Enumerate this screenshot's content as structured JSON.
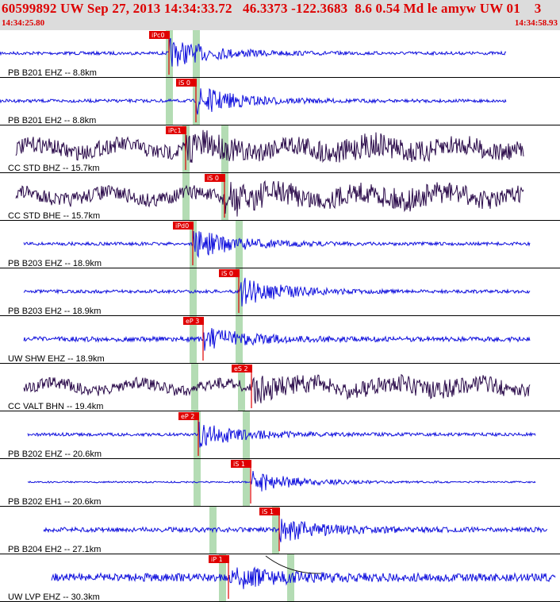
{
  "header": {
    "title": "60599892 UW Sep 27, 2013 14:34:33.72   46.3373 -122.3683  8.6 0.54 Md le amyw UW 01    3",
    "start_time": "14:34:25.80",
    "end_time": "14:34:58.93"
  },
  "colors": {
    "short_period": "#1010dd",
    "broadband": "#2a0a4a",
    "pick": "#e00000",
    "window": "#b4dcb4",
    "label": "#000000"
  },
  "traces": [
    {
      "label": "PB B201 EHZ -- 8.8km",
      "pick": "iPc0",
      "kind": "sp",
      "amp": 2,
      "env": 18,
      "start": 0,
      "end": 638,
      "wins": [
        213,
        247
      ]
    },
    {
      "label": "PB B201 EH2 -- 8.8km",
      "pick": "iS 0",
      "kind": "sp",
      "amp": 2,
      "env": 18,
      "start": 0,
      "end": 638,
      "wins": [
        213,
        247
      ]
    },
    {
      "label": "CC STD BHZ -- 15.7km",
      "pick": "iPc1",
      "kind": "bb",
      "amp": 10,
      "env": 12,
      "start": 20,
      "end": 660,
      "wins": [
        234,
        283
      ]
    },
    {
      "label": "CC STD BHE -- 15.7km",
      "pick": "iS 0",
      "kind": "bb",
      "amp": 9,
      "env": 16,
      "start": 20,
      "end": 660,
      "wins": [
        234,
        283
      ]
    },
    {
      "label": "PB B203 EHZ -- 18.9km",
      "pick": "iPd0",
      "kind": "sp",
      "amp": 2,
      "env": 18,
      "start": 30,
      "end": 668,
      "wins": [
        243,
        301
      ]
    },
    {
      "label": "PB B203 EH2 -- 18.9km",
      "pick": "iS 0",
      "kind": "sp",
      "amp": 2,
      "env": 18,
      "start": 30,
      "end": 668,
      "wins": [
        243,
        301
      ]
    },
    {
      "label": "UW SHW EHZ -- 18.9km",
      "pick": "eP 3",
      "kind": "sp",
      "amp": 3,
      "env": 14,
      "start": 30,
      "end": 668,
      "wins": [
        243,
        301
      ]
    },
    {
      "label": "CC VALT BHN -- 19.4km",
      "pick": "eS 2",
      "kind": "bb",
      "amp": 7,
      "env": 14,
      "start": 30,
      "end": 668,
      "wins": [
        245,
        304
      ]
    },
    {
      "label": "PB B202 EHZ -- 20.6km",
      "pick": "eP 2",
      "kind": "sp",
      "amp": 2,
      "env": 16,
      "start": 35,
      "end": 675,
      "wins": [
        248,
        310
      ]
    },
    {
      "label": "PB B202 EH1 -- 20.6km",
      "pick": "iS 1",
      "kind": "sp",
      "amp": 1,
      "env": 14,
      "start": 35,
      "end": 675,
      "wins": [
        248,
        310
      ]
    },
    {
      "label": "PB B204 EH2 -- 27.1km",
      "pick": "iS 1",
      "kind": "sp",
      "amp": 3,
      "env": 14,
      "start": 55,
      "end": 690,
      "wins": [
        268,
        347
      ]
    },
    {
      "label": "UW LVP EHZ -- 30.3km",
      "pick": "iP 1",
      "kind": "sp",
      "amp": 5,
      "env": 14,
      "start": 65,
      "end": 700,
      "wins": [
        280,
        366
      ]
    }
  ]
}
